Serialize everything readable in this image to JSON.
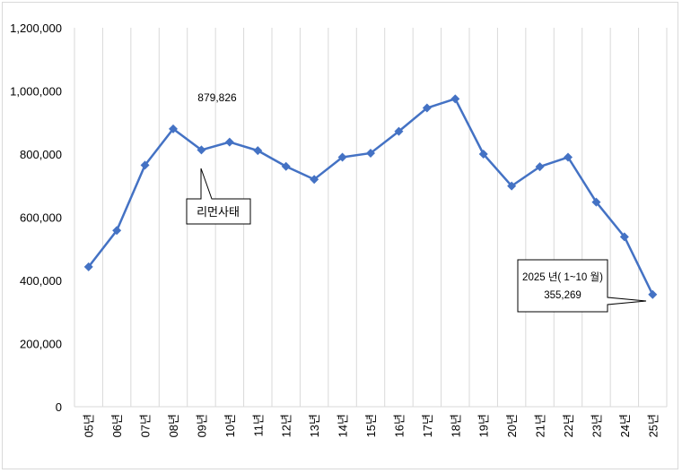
{
  "chart_data": {
    "type": "line",
    "categories": [
      "05년",
      "06년",
      "07년",
      "08년",
      "09년",
      "10년",
      "11년",
      "12년",
      "13년",
      "14년",
      "15년",
      "16년",
      "17년",
      "18년",
      "19년",
      "20년",
      "21년",
      "22년",
      "23년",
      "24년",
      "25년"
    ],
    "series": [
      {
        "values": [
          443000,
          558000,
          765000,
          879826,
          813000,
          838000,
          811000,
          761000,
          720000,
          790000,
          803000,
          872000,
          946000,
          975000,
          800000,
          699000,
          760000,
          790000,
          648000,
          538000,
          355269
        ]
      }
    ],
    "ylim": [
      0,
      1200000
    ],
    "yticks": [
      0,
      200000,
      400000,
      600000,
      800000,
      1000000,
      1200000
    ],
    "ytick_labels": [
      "0",
      "200,000",
      "400,000",
      "600,000",
      "800,000",
      "1,000,000",
      "1,200,000"
    ],
    "grid": "vertical",
    "line_color": "#4472c4",
    "annotations": {
      "peak_label": "879,826",
      "crisis_label": "리먼사태",
      "last_label_line1": "2025 년( 1~10 월)",
      "last_label_line2": "355,269"
    }
  }
}
